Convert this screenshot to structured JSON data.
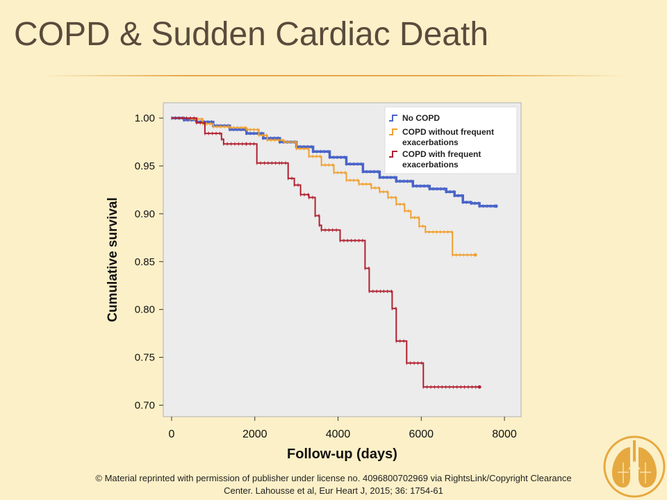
{
  "slide": {
    "title": "COPD & Sudden Cardiac Death",
    "footer_line1": "© Material reprinted with permission of publisher under license no. 4096800702969 via RightsLink/Copyright Clearance",
    "footer_line2": "Center.  Lahousse et al, Eur Heart J, 2015; 36: 1754-61",
    "logo_icon": "lungs-logo-icon"
  },
  "colors": {
    "background": "#fcf0c8",
    "title_text": "#5a4a3c",
    "rule": "#e6a546",
    "plot_background": "#ececec",
    "logo": "#e6a940"
  },
  "chart_data": {
    "type": "line",
    "xlabel": "Follow-up (days)",
    "ylabel": "Cumulative survival",
    "xlim": [
      -200,
      8400
    ],
    "ylim": [
      0.688,
      1.016
    ],
    "x_ticks": [
      0,
      2000,
      4000,
      6000,
      8000
    ],
    "x_tick_labels": [
      "0",
      "2000",
      "4000",
      "6000",
      "8000"
    ],
    "y_ticks": [
      1.0,
      0.95,
      0.9,
      0.85,
      0.8,
      0.75,
      0.7
    ],
    "y_tick_labels": [
      "1.00",
      "0.95",
      "0.90",
      "0.85",
      "0.80",
      "0.75",
      "0.70"
    ],
    "grid": false,
    "legend_position": "top-right",
    "series": [
      {
        "name": "No COPD",
        "color": "#4a64c8",
        "step": true,
        "points": [
          [
            0,
            1.0
          ],
          [
            300,
            0.998
          ],
          [
            600,
            0.996
          ],
          [
            1000,
            0.992
          ],
          [
            1400,
            0.988
          ],
          [
            1800,
            0.984
          ],
          [
            2200,
            0.979
          ],
          [
            2600,
            0.975
          ],
          [
            3000,
            0.97
          ],
          [
            3400,
            0.965
          ],
          [
            3800,
            0.959
          ],
          [
            4200,
            0.952
          ],
          [
            4600,
            0.944
          ],
          [
            5000,
            0.938
          ],
          [
            5400,
            0.934
          ],
          [
            5800,
            0.929
          ],
          [
            6200,
            0.926
          ],
          [
            6600,
            0.923
          ],
          [
            6800,
            0.919
          ],
          [
            7000,
            0.912
          ],
          [
            7200,
            0.911
          ],
          [
            7400,
            0.908
          ],
          [
            7800,
            0.908
          ]
        ]
      },
      {
        "name": "COPD without frequent exacerbations",
        "color": "#f0a030",
        "step": true,
        "points": [
          [
            0,
            1.0
          ],
          [
            450,
            0.999
          ],
          [
            750,
            0.994
          ],
          [
            1000,
            0.991
          ],
          [
            1400,
            0.99
          ],
          [
            1800,
            0.988
          ],
          [
            2100,
            0.982
          ],
          [
            2300,
            0.977
          ],
          [
            2700,
            0.975
          ],
          [
            3000,
            0.968
          ],
          [
            3300,
            0.96
          ],
          [
            3600,
            0.951
          ],
          [
            3900,
            0.943
          ],
          [
            4200,
            0.935
          ],
          [
            4500,
            0.931
          ],
          [
            4800,
            0.927
          ],
          [
            5000,
            0.923
          ],
          [
            5200,
            0.917
          ],
          [
            5400,
            0.91
          ],
          [
            5600,
            0.903
          ],
          [
            5750,
            0.896
          ],
          [
            5950,
            0.887
          ],
          [
            6100,
            0.881
          ],
          [
            6750,
            0.881
          ],
          [
            6750,
            0.857
          ],
          [
            7300,
            0.857
          ]
        ]
      },
      {
        "name": "COPD with frequent exacerbations",
        "color": "#b02030",
        "step": true,
        "points": [
          [
            0,
            1.0
          ],
          [
            600,
            0.995
          ],
          [
            800,
            0.984
          ],
          [
            1200,
            0.978
          ],
          [
            1250,
            0.973
          ],
          [
            1800,
            0.973
          ],
          [
            2050,
            0.953
          ],
          [
            2650,
            0.953
          ],
          [
            2800,
            0.937
          ],
          [
            2950,
            0.93
          ],
          [
            3100,
            0.92
          ],
          [
            3300,
            0.917
          ],
          [
            3450,
            0.898
          ],
          [
            3550,
            0.888
          ],
          [
            3600,
            0.883
          ],
          [
            4050,
            0.883
          ],
          [
            4050,
            0.872
          ],
          [
            4650,
            0.872
          ],
          [
            4650,
            0.843
          ],
          [
            4750,
            0.819
          ],
          [
            5100,
            0.819
          ],
          [
            5300,
            0.801
          ],
          [
            5400,
            0.767
          ],
          [
            5650,
            0.767
          ],
          [
            5650,
            0.744
          ],
          [
            6050,
            0.744
          ],
          [
            6050,
            0.719
          ],
          [
            7400,
            0.719
          ]
        ]
      }
    ]
  }
}
